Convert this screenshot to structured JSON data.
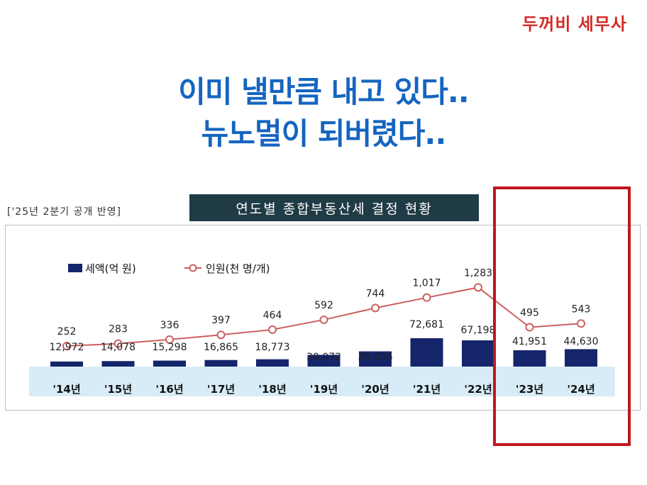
{
  "brand": "두꺼비 세무사",
  "headline": [
    "이미 낼만큼 내고 있다..",
    "뉴노멀이 되버렸다.."
  ],
  "note": "['25년 2분기 공개 반영]",
  "chart_data": {
    "type": "bar+line",
    "title": "연도별 종합부동산세 결정 현황",
    "categories": [
      "'14년",
      "'15년",
      "'16년",
      "'17년",
      "'18년",
      "'19년",
      "'20년",
      "'21년",
      "'22년",
      "'23년",
      "'24년"
    ],
    "series": [
      {
        "name": "세액(억 원)",
        "type": "bar",
        "values": [
          12972,
          14078,
          15298,
          16865,
          18773,
          30072,
          39006,
          72681,
          67198,
          41951,
          44630
        ],
        "labels": [
          "12,972",
          "14,078",
          "15,298",
          "16,865",
          "18,773",
          "30,072",
          "39,006",
          "72,681",
          "67,198",
          "41,951",
          "44,630"
        ],
        "color": "#15256b"
      },
      {
        "name": "인원(천 명/개)",
        "type": "line",
        "values": [
          252,
          283,
          336,
          397,
          464,
          592,
          744,
          1017,
          1283,
          495,
          543
        ],
        "labels": [
          "252",
          "283",
          "336",
          "397",
          "464",
          "592",
          "744",
          "1,017",
          "1,283",
          "495",
          "543"
        ],
        "color": "#cc6060"
      }
    ],
    "legend_position": "top-left",
    "axis_band_color": "#d7ecf7"
  }
}
